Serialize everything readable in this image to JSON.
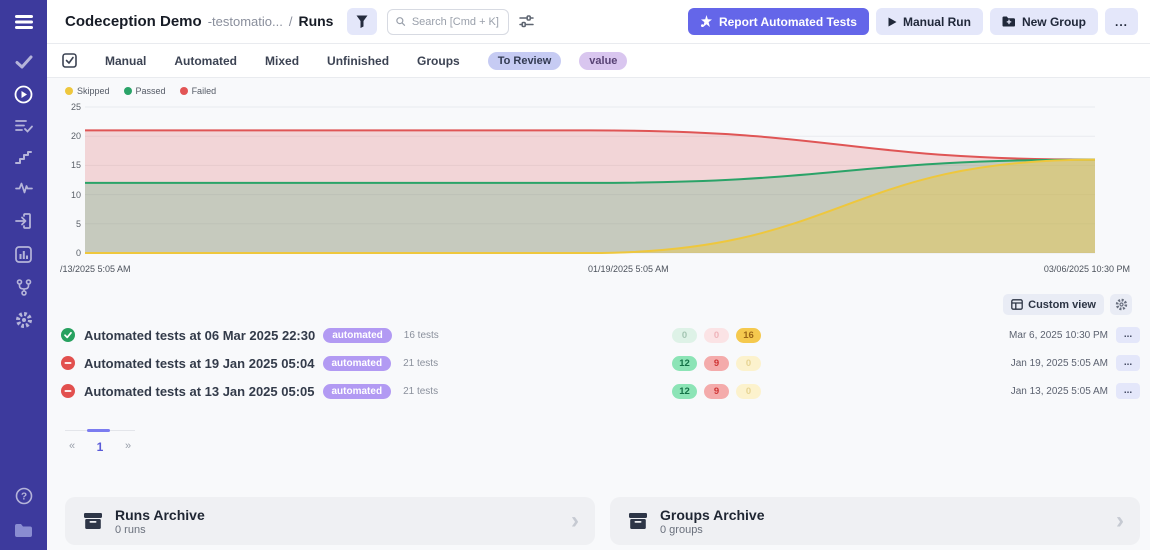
{
  "sidebar": {
    "icons": [
      "menu-icon",
      "tests-check-icon",
      "runs-play-icon",
      "test-plans-icon",
      "steps-icon",
      "pulse-icon",
      "import-icon",
      "analytics-icon",
      "branch-icon",
      "settings-gear-icon",
      "help-icon",
      "projects-folder-icon"
    ],
    "active": "runs-play-icon"
  },
  "header": {
    "project_title": "Codeception Demo",
    "project_subtitle": "-testomatio...",
    "breadcrumb_separator": "/",
    "page_name": "Runs",
    "search_placeholder": "Search [Cmd + K]",
    "report_button": "Report Automated Tests",
    "manual_run_button": "Manual Run",
    "new_group_button": "New Group",
    "more_button": "..."
  },
  "tabs": {
    "items": [
      {
        "label": "Manual"
      },
      {
        "label": "Automated"
      },
      {
        "label": "Mixed"
      },
      {
        "label": "Unfinished"
      },
      {
        "label": "Groups"
      }
    ],
    "review_pill": "To Review",
    "value_pill": "value"
  },
  "chart_data": {
    "type": "area",
    "stacked": true,
    "grid": "horizontal",
    "legend_position": "top-left",
    "legend": [
      {
        "label": "Skipped",
        "color": "#eec73d"
      },
      {
        "label": "Passed",
        "color": "#2aa368"
      },
      {
        "label": "Failed",
        "color": "#e25555"
      }
    ],
    "x_labels": [
      "/13/2025 5:05 AM",
      "01/19/2025 5:05 AM",
      "03/06/2025 10:30 PM"
    ],
    "ylim": [
      0,
      25
    ],
    "yticks": [
      0,
      5,
      10,
      15,
      20,
      25
    ],
    "series": [
      {
        "name": "Skipped",
        "color": "#eec73d",
        "fill": "rgba(236,199,61,0.42)",
        "values": [
          0,
          0,
          16
        ]
      },
      {
        "name": "Passed",
        "color": "#2aa368",
        "fill": "rgba(42,163,104,0.22)",
        "values": [
          12,
          12,
          0
        ]
      },
      {
        "name": "Failed",
        "color": "#df5555",
        "fill": "rgba(223,85,85,0.22)",
        "values": [
          9,
          9,
          0
        ]
      }
    ]
  },
  "toolbar": {
    "custom_view_button": "Custom view"
  },
  "runs": [
    {
      "status": "passed",
      "title": "Automated tests at 06 Mar 2025 22:30",
      "badge": "automated",
      "tests_label": "16 tests",
      "counts": {
        "passed": "0",
        "failed": "0",
        "skipped": "16"
      },
      "date": "Mar 6, 2025 10:30 PM",
      "more_label": "..."
    },
    {
      "status": "failed",
      "title": "Automated tests at 19 Jan 2025 05:04",
      "badge": "automated",
      "tests_label": "21 tests",
      "counts": {
        "passed": "12",
        "failed": "9",
        "skipped": "0"
      },
      "date": "Jan 19, 2025 5:05 AM",
      "more_label": "..."
    },
    {
      "status": "failed",
      "title": "Automated tests at 13 Jan 2025 05:05",
      "badge": "automated",
      "tests_label": "21 tests",
      "counts": {
        "passed": "12",
        "failed": "9",
        "skipped": "0"
      },
      "date": "Jan 13, 2025 5:05 AM",
      "more_label": "..."
    }
  ],
  "pagination": {
    "prev": "«",
    "current_page": "1",
    "next": "»"
  },
  "archives": {
    "runs": {
      "title": "Runs Archive",
      "subtitle": "0 runs",
      "chevron": "›"
    },
    "groups": {
      "title": "Groups Archive",
      "subtitle": "0 groups",
      "chevron": "›"
    }
  }
}
